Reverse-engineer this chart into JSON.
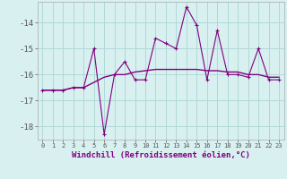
{
  "x": [
    0,
    1,
    2,
    3,
    4,
    5,
    6,
    7,
    8,
    9,
    10,
    11,
    12,
    13,
    14,
    15,
    16,
    17,
    18,
    19,
    20,
    21,
    22,
    23
  ],
  "windchill": [
    -16.6,
    -16.6,
    -16.6,
    -16.5,
    -16.5,
    -15.0,
    -18.3,
    -16.0,
    -15.5,
    -16.2,
    -16.2,
    -14.6,
    -14.8,
    -15.0,
    -13.4,
    -14.1,
    -16.2,
    -14.3,
    -16.0,
    -16.0,
    -16.1,
    -15.0,
    -16.2,
    -16.2
  ],
  "trend": [
    -16.6,
    -16.6,
    -16.6,
    -16.5,
    -16.5,
    -16.3,
    -16.1,
    -16.0,
    -16.0,
    -15.9,
    -15.85,
    -15.8,
    -15.8,
    -15.8,
    -15.8,
    -15.8,
    -15.85,
    -15.85,
    -15.9,
    -15.9,
    -16.0,
    -16.0,
    -16.1,
    -16.1
  ],
  "line_color": "#800080",
  "background_color": "#d8f0f0",
  "grid_color": "#b0d8d8",
  "xlabel": "Windchill (Refroidissement éolien,°C)",
  "ylim": [
    -18.5,
    -13.2
  ],
  "yticks": [
    -18,
    -17,
    -16,
    -15,
    -14
  ],
  "xtick_labels": [
    "0",
    "1",
    "2",
    "3",
    "4",
    "5",
    "6",
    "7",
    "8",
    "9",
    "10",
    "11",
    "12",
    "13",
    "14",
    "15",
    "16",
    "17",
    "18",
    "19",
    "20",
    "21",
    "22",
    "23"
  ]
}
